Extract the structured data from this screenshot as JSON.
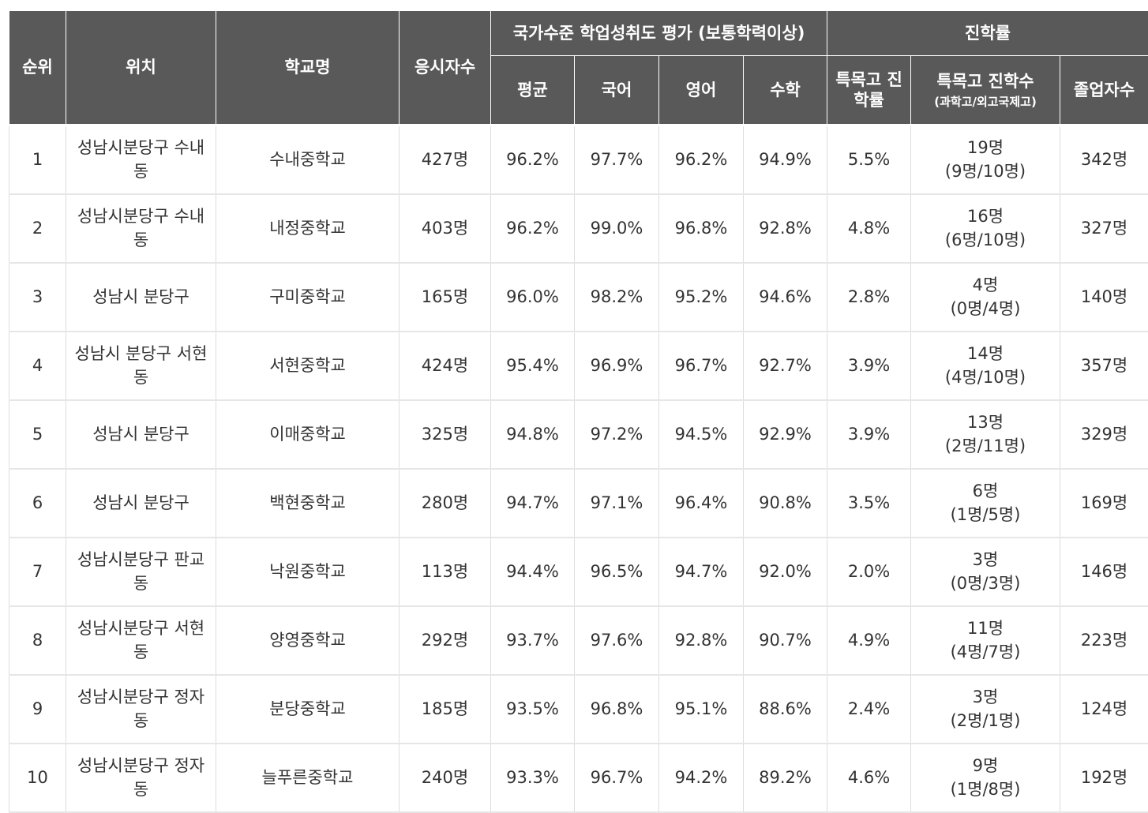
{
  "headers": {
    "rank": "순위",
    "location": "위치",
    "school": "학교명",
    "examinees": "응시자수",
    "assessment": "국가수준 학업성취도 평가 (보통학력이상)",
    "average": "평균",
    "korean": "국어",
    "english": "영어",
    "math": "수학",
    "advancement": "진학률",
    "special_rate": "특목고 진학률",
    "special_count": "특목고 진학수",
    "special_count_sub": "(과학고/외고국제고)",
    "graduates": "졸업자수"
  },
  "rows": [
    {
      "rank": "1",
      "location": "성남시분당구 수내동",
      "school": "수내중학교",
      "examinees": "427명",
      "average": "96.2%",
      "korean": "97.7%",
      "english": "96.2%",
      "math": "94.9%",
      "special_rate": "5.5%",
      "special_count": "19명",
      "special_detail": "(9명/10명)",
      "graduates": "342명"
    },
    {
      "rank": "2",
      "location": "성남시분당구 수내동",
      "school": "내정중학교",
      "examinees": "403명",
      "average": "96.2%",
      "korean": "99.0%",
      "english": "96.8%",
      "math": "92.8%",
      "special_rate": "4.8%",
      "special_count": "16명",
      "special_detail": "(6명/10명)",
      "graduates": "327명"
    },
    {
      "rank": "3",
      "location": "성남시 분당구",
      "school": "구미중학교",
      "examinees": "165명",
      "average": "96.0%",
      "korean": "98.2%",
      "english": "95.2%",
      "math": "94.6%",
      "special_rate": "2.8%",
      "special_count": "4명",
      "special_detail": "(0명/4명)",
      "graduates": "140명"
    },
    {
      "rank": "4",
      "location": "성남시 분당구 서현동",
      "school": "서현중학교",
      "examinees": "424명",
      "average": "95.4%",
      "korean": "96.9%",
      "english": "96.7%",
      "math": "92.7%",
      "special_rate": "3.9%",
      "special_count": "14명",
      "special_detail": "(4명/10명)",
      "graduates": "357명"
    },
    {
      "rank": "5",
      "location": "성남시 분당구",
      "school": "이매중학교",
      "examinees": "325명",
      "average": "94.8%",
      "korean": "97.2%",
      "english": "94.5%",
      "math": "92.9%",
      "special_rate": "3.9%",
      "special_count": "13명",
      "special_detail": "(2명/11명)",
      "graduates": "329명"
    },
    {
      "rank": "6",
      "location": "성남시 분당구",
      "school": "백현중학교",
      "examinees": "280명",
      "average": "94.7%",
      "korean": "97.1%",
      "english": "96.4%",
      "math": "90.8%",
      "special_rate": "3.5%",
      "special_count": "6명",
      "special_detail": "(1명/5명)",
      "graduates": "169명"
    },
    {
      "rank": "7",
      "location": "성남시분당구 판교동",
      "school": "낙원중학교",
      "examinees": "113명",
      "average": "94.4%",
      "korean": "96.5%",
      "english": "94.7%",
      "math": "92.0%",
      "special_rate": "2.0%",
      "special_count": "3명",
      "special_detail": "(0명/3명)",
      "graduates": "146명"
    },
    {
      "rank": "8",
      "location": "성남시분당구 서현동",
      "school": "양영중학교",
      "examinees": "292명",
      "average": "93.7%",
      "korean": "97.6%",
      "english": "92.8%",
      "math": "90.7%",
      "special_rate": "4.9%",
      "special_count": "11명",
      "special_detail": "(4명/7명)",
      "graduates": "223명"
    },
    {
      "rank": "9",
      "location": "성남시분당구 정자동",
      "school": "분당중학교",
      "examinees": "185명",
      "average": "93.5%",
      "korean": "96.8%",
      "english": "95.1%",
      "math": "88.6%",
      "special_rate": "2.4%",
      "special_count": "3명",
      "special_detail": "(2명/1명)",
      "graduates": "124명"
    },
    {
      "rank": "10",
      "location": "성남시분당구 정자동",
      "school": "늘푸른중학교",
      "examinees": "240명",
      "average": "93.3%",
      "korean": "96.7%",
      "english": "94.2%",
      "math": "89.2%",
      "special_rate": "4.6%",
      "special_count": "9명",
      "special_detail": "(1명/8명)",
      "graduates": "192명"
    }
  ]
}
